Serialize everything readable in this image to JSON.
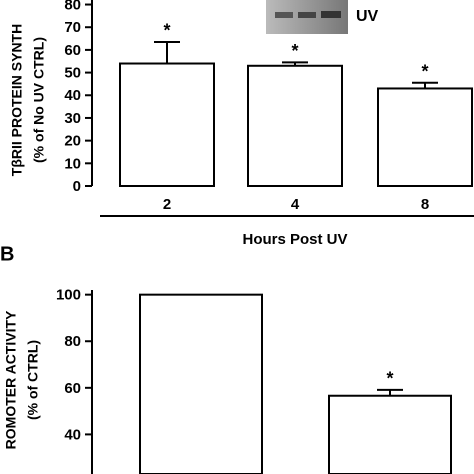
{
  "chart_data": [
    {
      "type": "bar",
      "y_label": [
        "TβRII PROTEIN SYNTH",
        "(% of No UV CTRL)"
      ],
      "inset_label": "UV",
      "x_label": "Hours Post UV",
      "categories": [
        "2",
        "4",
        "8"
      ],
      "values": [
        54,
        53,
        43
      ],
      "errors": [
        9.5,
        1.5,
        2.5
      ],
      "significance": [
        "*",
        "*",
        "*"
      ],
      "color": "#ffffff",
      "ylim": [
        0,
        82
      ],
      "yticks": [
        0,
        10,
        20,
        30,
        40,
        50,
        60,
        70,
        80
      ]
    },
    {
      "type": "bar",
      "panel_label": "B",
      "y_label": [
        "ROMOTER ACTIVITY",
        "(% of CTRL)"
      ],
      "categories": [
        null,
        null
      ],
      "values": [
        100,
        56.6
      ],
      "errors": [
        null,
        2.5
      ],
      "significance": [
        null,
        "*"
      ],
      "color": "#ffffff",
      "ylim": [
        23,
        102
      ],
      "yticks": [
        40,
        60,
        80,
        100
      ]
    }
  ]
}
